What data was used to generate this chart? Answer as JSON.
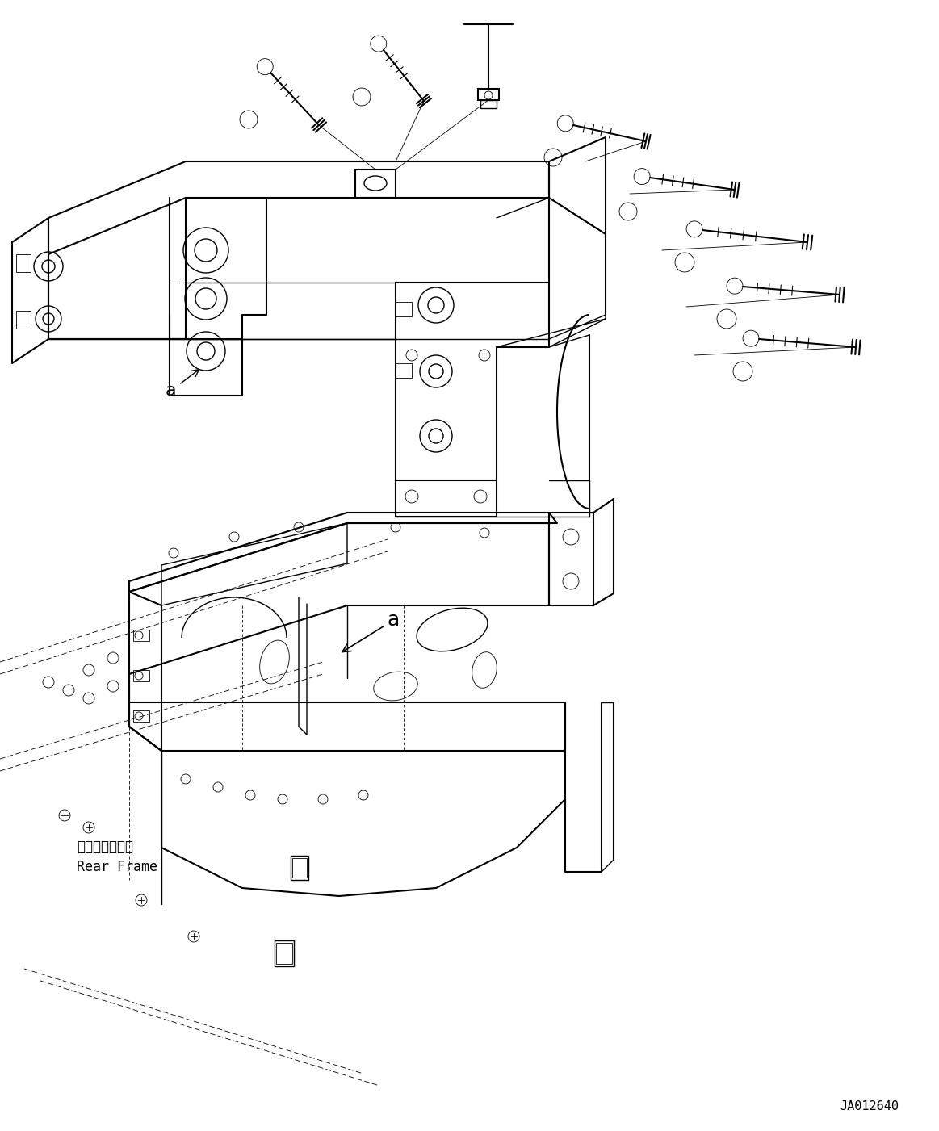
{
  "figsize": [
    11.63,
    14.01
  ],
  "dpi": 100,
  "bg_color": "#ffffff",
  "code_text": "JA012640",
  "rear_frame_line1": "リヤーフレーム",
  "rear_frame_line2": "Rear Frame"
}
